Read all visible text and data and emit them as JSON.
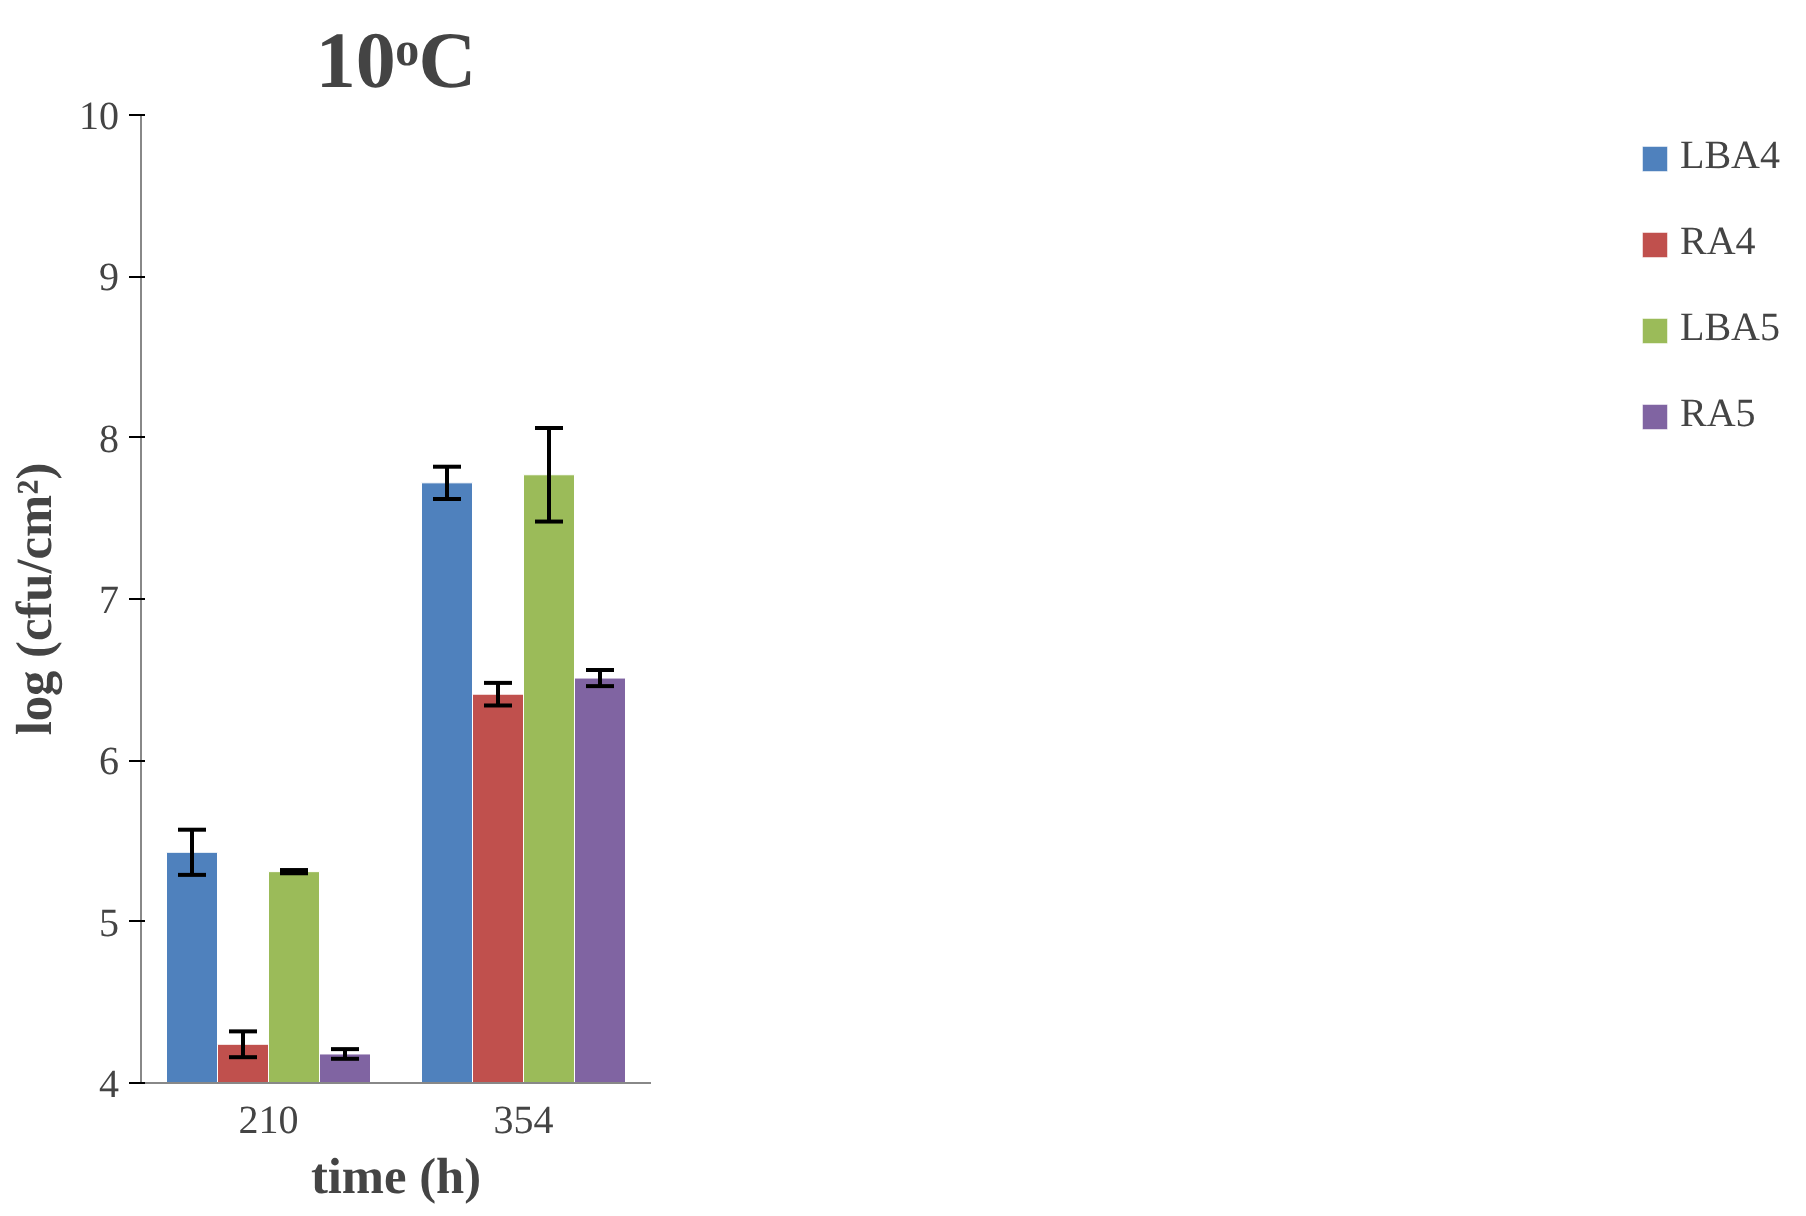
{
  "chart_data": {
    "type": "bar",
    "title": "10ᵒC",
    "xlabel": "time (h)",
    "ylabel": "log (cfu/cm²)",
    "categories": [
      "210",
      "354"
    ],
    "series": [
      {
        "name": "LBA4",
        "color": "#4f81bd",
        "values": [
          5.43,
          7.72
        ],
        "errors": [
          0.14,
          0.1
        ]
      },
      {
        "name": "RA4",
        "color": "#c0504d",
        "values": [
          4.24,
          6.41
        ],
        "errors": [
          0.08,
          0.07
        ]
      },
      {
        "name": "LBA5",
        "color": "#9bbb59",
        "values": [
          5.31,
          7.77
        ],
        "errors": [
          0.01,
          0.29
        ]
      },
      {
        "name": "RA5",
        "color": "#8064a2",
        "values": [
          4.18,
          6.51
        ],
        "errors": [
          0.03,
          0.05
        ]
      }
    ],
    "ylim": [
      4,
      10
    ],
    "yticks": [
      4,
      5,
      6,
      7,
      8,
      9,
      10
    ],
    "grid": false,
    "legend": "right"
  }
}
